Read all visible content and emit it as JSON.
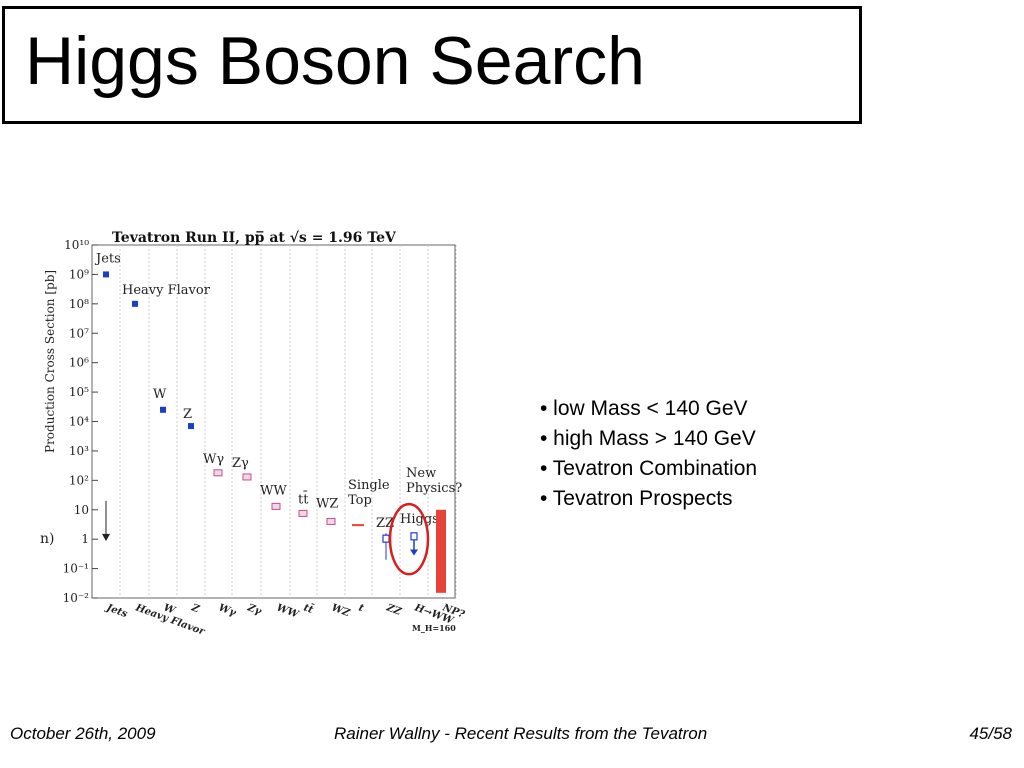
{
  "slide": {
    "title": "Higgs Boson Search",
    "bullets": [
      "• low  Mass < 140 GeV",
      "• high Mass > 140 GeV",
      "• Tevatron Combination",
      "• Tevatron Prospects"
    ],
    "footer": {
      "date": "October 26th, 2009",
      "center": "Rainer Wallny - Recent Results from the Tevatron",
      "page": "45/58"
    }
  },
  "chart_data": {
    "type": "scatter",
    "title": "Tevatron Run II, pp̅ at √s = 1.96 TeV",
    "ylabel": "Production Cross Section [pb]",
    "yscale": "log",
    "ylim": [
      0.01,
      10000000000
    ],
    "ytick_labels": [
      "10⁻²",
      "10⁻¹",
      "1",
      "10",
      "10²",
      "10³",
      "10⁴",
      "10⁵",
      "10⁶",
      "10⁷",
      "10⁸",
      "10⁹",
      "10¹⁰"
    ],
    "categories": [
      "Jets",
      "Heavy Flavor",
      "W",
      "Z",
      "Wγ",
      "Zγ",
      "WW",
      "tt̄",
      "WZ",
      "t",
      "ZZ",
      "H→WW",
      "NP?"
    ],
    "points": [
      {
        "category": "Jets",
        "label": "Jets",
        "value": 1000000000,
        "marker": "blue"
      },
      {
        "category": "Heavy Flavor",
        "label": "Heavy Flavor",
        "value": 100000000,
        "marker": "blue"
      },
      {
        "category": "W",
        "label": "W",
        "value": 25000,
        "marker": "blue"
      },
      {
        "category": "Z",
        "label": "Z",
        "value": 7000,
        "marker": "blue"
      },
      {
        "category": "Wγ",
        "label": "Wγ",
        "value": 180,
        "marker": "pink"
      },
      {
        "category": "Zγ",
        "label": "Zγ",
        "value": 130,
        "marker": "pink"
      },
      {
        "category": "WW",
        "label": "WW",
        "value": 13,
        "marker": "pink"
      },
      {
        "category": "tt̄",
        "label": "tt̄",
        "value": 7.5,
        "marker": "pink"
      },
      {
        "category": "WZ",
        "label": "WZ",
        "value": 4,
        "marker": "pink"
      },
      {
        "category": "t",
        "label": "Single Top",
        "value": 3,
        "marker": "red-dash"
      },
      {
        "category": "ZZ",
        "label": "ZZ",
        "value": 1,
        "marker": "open",
        "err_low": 0.2,
        "err_high": 1.6
      },
      {
        "category": "H→WW",
        "label": "Higgs",
        "value": 1.2,
        "marker": "open",
        "limit": 0.3
      }
    ],
    "annotations": {
      "new_physics": [
        "New",
        "Physics?"
      ],
      "partial_left": "n)",
      "mass_note": "M_H=160"
    },
    "colors": {
      "blue": "#1a3fc4",
      "pink": "#c0508f",
      "red": "#e8433a",
      "circle": "#d81e1e",
      "grid": "#cccccc"
    }
  }
}
